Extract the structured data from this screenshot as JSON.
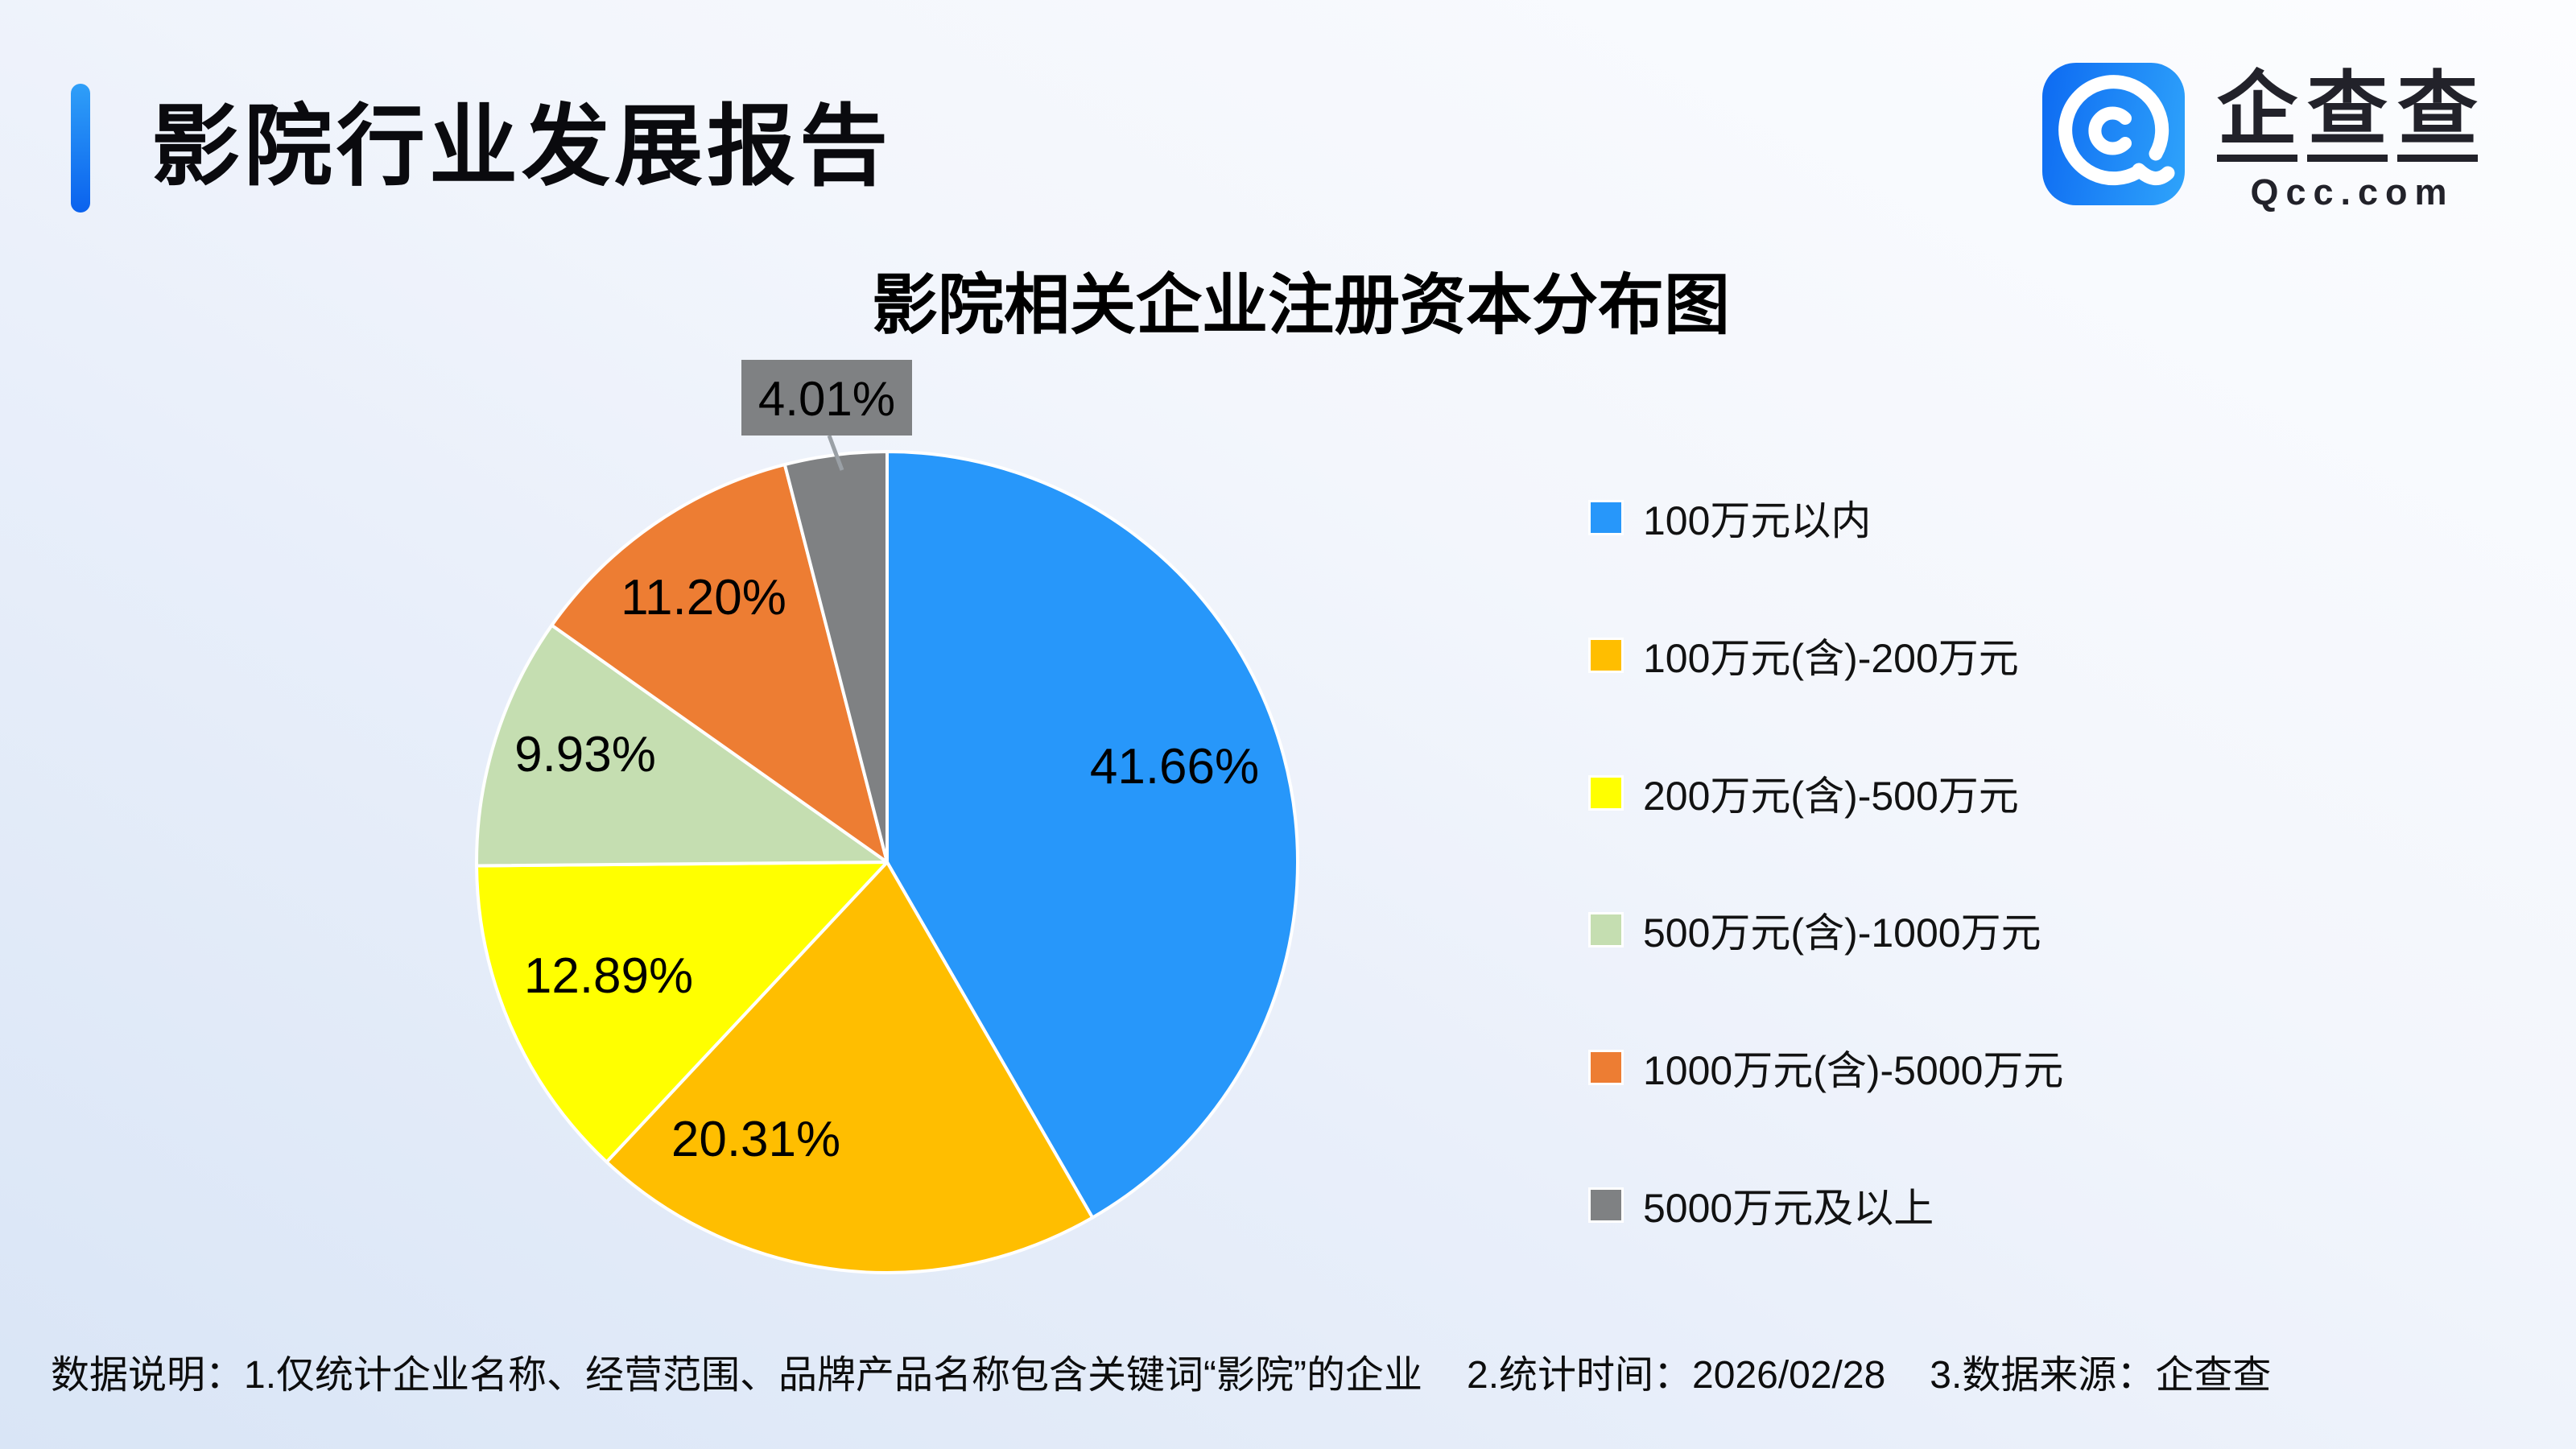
{
  "page": {
    "title": "影院行业发展报告"
  },
  "logo": {
    "chars": [
      "企",
      "查",
      "查"
    ],
    "domain": "Qcc.com"
  },
  "chart_data": {
    "type": "pie",
    "title": "影院相关企业注册资本分布图",
    "legend_position": "right",
    "start_angle_deg": 0,
    "direction": "clockwise",
    "series": [
      {
        "label": "100万元以内",
        "value": 41.66,
        "display": "41.66%",
        "color": "#2797FA"
      },
      {
        "label": "100万元(含)-200万元",
        "value": 20.31,
        "display": "20.31%",
        "color": "#FFBE00"
      },
      {
        "label": "200万元(含)-500万元",
        "value": 12.89,
        "display": "12.89%",
        "color": "#FFFF00"
      },
      {
        "label": "500万元(含)-1000万元",
        "value": 9.93,
        "display": "9.93%",
        "color": "#C5DEB1"
      },
      {
        "label": "1000万元(含)-5000万元",
        "value": 11.2,
        "display": "11.20%",
        "color": "#ED7D33"
      },
      {
        "label": "5000万元及以上",
        "value": 4.01,
        "display": "4.01%",
        "color": "#7F8183"
      }
    ]
  },
  "footnote": {
    "parts": [
      "数据说明：1.仅统计企业名称、经营范围、品牌产品名称包含关键词“影院”的企业",
      "2.统计时间：2026/02/28",
      "3.数据来源：企查查"
    ]
  }
}
